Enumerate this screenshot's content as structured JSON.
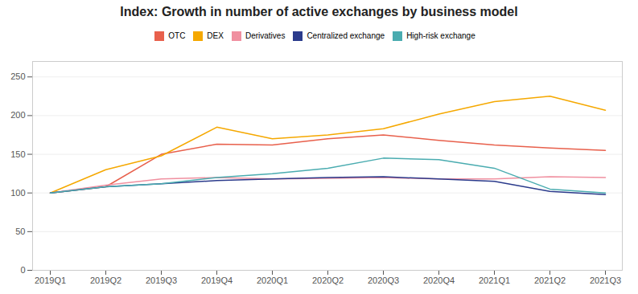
{
  "chart_data": {
    "type": "line",
    "title": "Index: Growth in number of active exchanges by business model",
    "categories": [
      "2019Q1",
      "2019Q2",
      "2019Q3",
      "2019Q4",
      "2020Q1",
      "2020Q2",
      "2020Q3",
      "2020Q4",
      "2021Q1",
      "2021Q2",
      "2021Q3"
    ],
    "series": [
      {
        "name": "OTC",
        "color": "#e8604c",
        "values": [
          100,
          108,
          150,
          163,
          162,
          170,
          175,
          168,
          162,
          158,
          155
        ]
      },
      {
        "name": "DEX",
        "color": "#f5a800",
        "values": [
          100,
          130,
          148,
          185,
          170,
          175,
          183,
          202,
          218,
          225,
          207
        ]
      },
      {
        "name": "Derivatives",
        "color": "#f090a0",
        "values": [
          100,
          110,
          118,
          120,
          118,
          119,
          120,
          118,
          118,
          121,
          120
        ]
      },
      {
        "name": "Centralized exchange",
        "color": "#2b3b8c",
        "values": [
          100,
          108,
          112,
          116,
          118,
          120,
          121,
          118,
          115,
          102,
          98
        ]
      },
      {
        "name": "High-risk exchange",
        "color": "#4aacb0",
        "values": [
          100,
          108,
          112,
          120,
          125,
          132,
          145,
          143,
          132,
          105,
          100
        ]
      }
    ],
    "ylim": [
      0,
      270
    ],
    "yticks": [
      0,
      50,
      100,
      150,
      200,
      250
    ],
    "grid": true,
    "legend": "top"
  }
}
